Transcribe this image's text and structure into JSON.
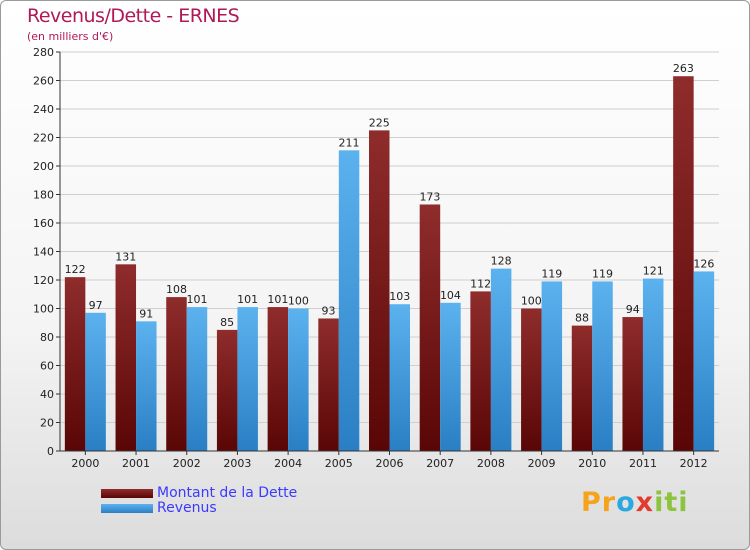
{
  "header": {
    "title": "Revenus/Dette - ERNES",
    "subtitle": "(en milliers d'€)"
  },
  "logo": {
    "text": "Proxiti"
  },
  "colors": {
    "debt_dark": "#5a0606",
    "debt_light": "#8f2c2c",
    "revenue_dark": "#2a7fc4",
    "revenue_light": "#5cb2ee",
    "grid": "#cccccc",
    "axis": "#333333"
  },
  "chart_data": {
    "type": "bar",
    "title": "Revenus/Dette - ERNES",
    "subtitle": "(en milliers d'€)",
    "categories": [
      "2000",
      "2001",
      "2002",
      "2003",
      "2004",
      "2005",
      "2006",
      "2007",
      "2008",
      "2009",
      "2010",
      "2011",
      "2012"
    ],
    "series": [
      {
        "name": "Montant de la Dette",
        "values": [
          122,
          131,
          108,
          85,
          101,
          93,
          225,
          173,
          112,
          100,
          88,
          94,
          263
        ]
      },
      {
        "name": "Revenus",
        "values": [
          97,
          91,
          101,
          101,
          100,
          211,
          103,
          104,
          128,
          119,
          119,
          121,
          126
        ]
      }
    ],
    "ylim": [
      0,
      280
    ],
    "yticks": [
      0,
      20,
      40,
      60,
      80,
      100,
      120,
      140,
      160,
      180,
      200,
      220,
      240,
      260,
      280
    ],
    "grid": true,
    "legend": "bottom-left",
    "data_labels": true
  }
}
